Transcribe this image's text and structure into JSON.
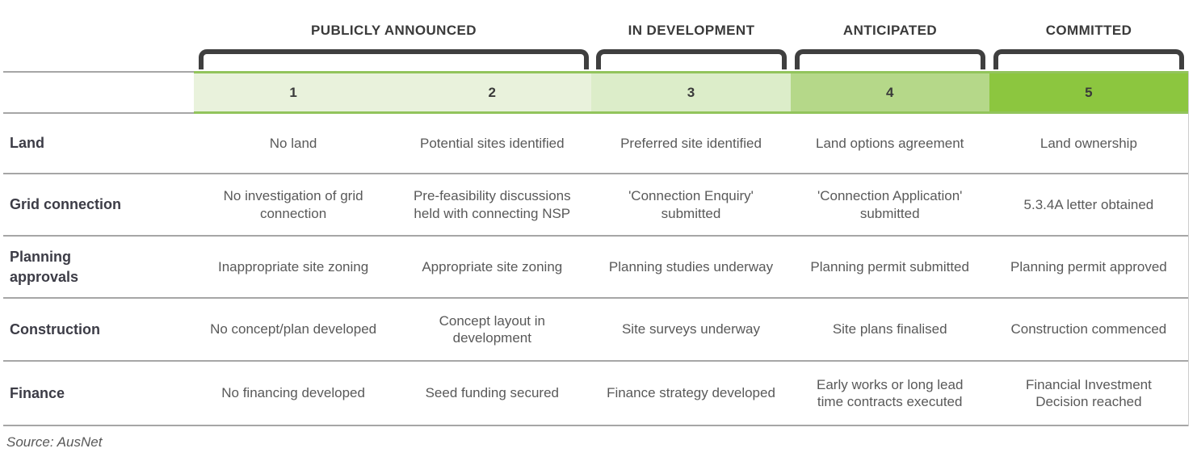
{
  "phases": [
    {
      "label": "PUBLICLY ANNOUNCED",
      "stages": "1-2"
    },
    {
      "label": "IN DEVELOPMENT",
      "stages": "3"
    },
    {
      "label": "ANTICIPATED",
      "stages": "4"
    },
    {
      "label": "COMMITTED",
      "stages": "5"
    }
  ],
  "stages": [
    {
      "number": "1",
      "color": "#e9f2dc"
    },
    {
      "number": "2",
      "color": "#e9f2dc"
    },
    {
      "number": "3",
      "color": "#dcedc9"
    },
    {
      "number": "4",
      "color": "#b5d889"
    },
    {
      "number": "5",
      "color": "#8cc63f"
    }
  ],
  "rows": [
    {
      "label": "Land",
      "cells": [
        "No land",
        "Potential sites identified",
        "Preferred site identified",
        "Land options agreement",
        "Land ownership"
      ]
    },
    {
      "label": "Grid connection",
      "cells": [
        "No investigation of grid connection",
        "Pre-feasibility discussions held with connecting NSP",
        "'Connection Enquiry' submitted",
        "'Connection Application' submitted",
        "5.3.4A letter obtained"
      ]
    },
    {
      "label": "Planning\napprovals",
      "cells": [
        "Inappropriate site zoning",
        "Appropriate site zoning",
        "Planning studies underway",
        "Planning permit submitted",
        "Planning permit approved"
      ]
    },
    {
      "label": "Construction",
      "cells": [
        "No concept/plan developed",
        "Concept layout in development",
        "Site surveys underway",
        "Site plans finalised",
        "Construction commenced"
      ]
    },
    {
      "label": "Finance",
      "cells": [
        "No financing developed",
        "Seed funding secured",
        "Finance strategy developed",
        "Early works or long lead time contracts executed",
        "Financial Investment Decision reached"
      ]
    }
  ],
  "source": "Source: AusNet",
  "colors": {
    "bracket": "#3f3f3f",
    "band_border_green": "#92c45c",
    "divider_gray": "#a6a6a6",
    "header_text": "#3a3a3a",
    "row_label_text": "#3c3c46",
    "cell_text": "#595959"
  }
}
